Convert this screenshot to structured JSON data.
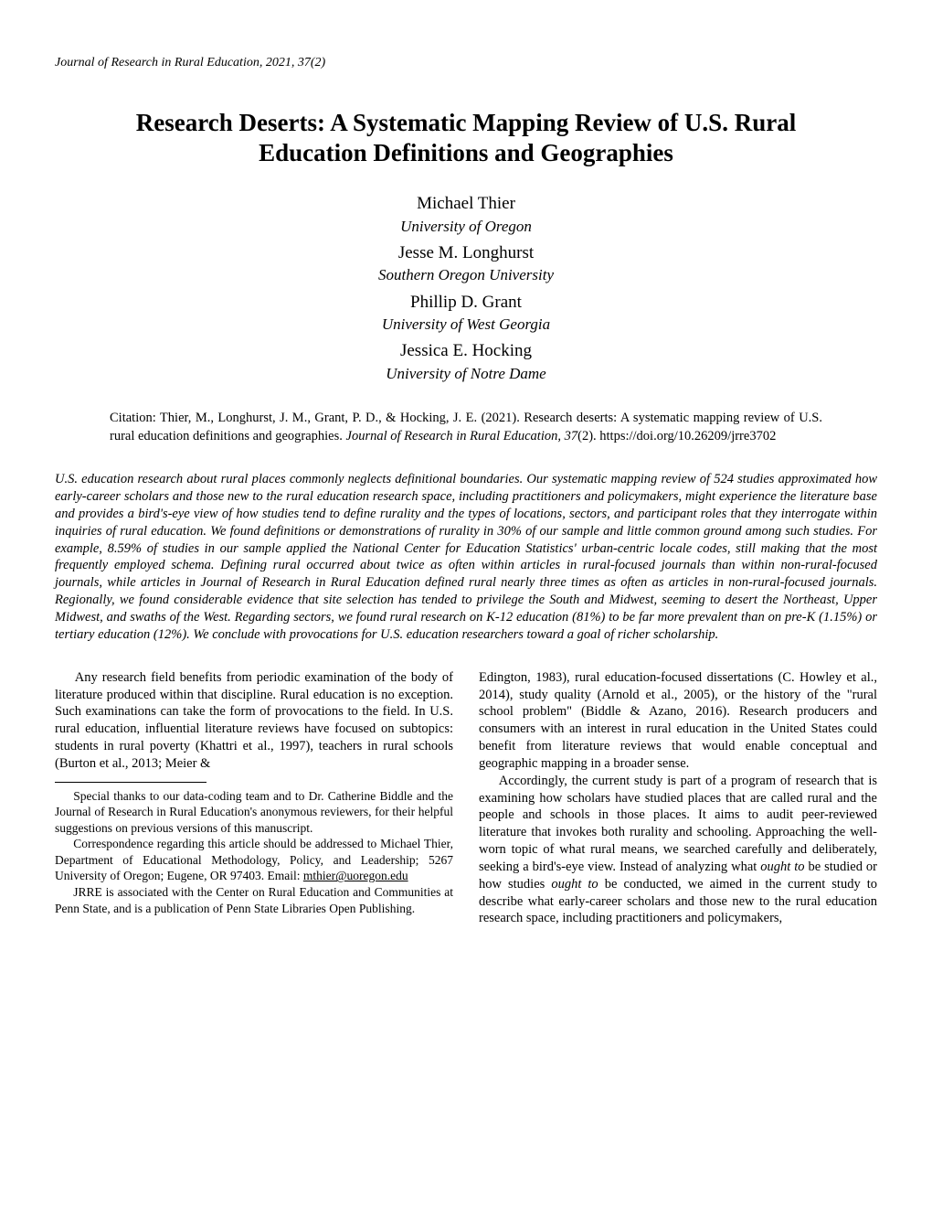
{
  "running_header": "Journal of Research in Rural Education, 2021, 37(2)",
  "title": "Research Deserts: A Systematic Mapping Review of U.S. Rural Education Definitions and Geographies",
  "authors": [
    {
      "name": "Michael Thier",
      "affiliation": "University of Oregon"
    },
    {
      "name": "Jesse M. Longhurst",
      "affiliation": "Southern Oregon University"
    },
    {
      "name": "Phillip D. Grant",
      "affiliation": "University of West Georgia"
    },
    {
      "name": "Jessica E. Hocking",
      "affiliation": "University of Notre Dame"
    }
  ],
  "citation": {
    "prefix": "Citation: Thier, M., Longhurst, J. M., Grant, P. D., & Hocking, J. E. (2021). Research deserts: A systematic mapping review of U.S. rural education definitions and geographies. ",
    "journal": "Journal of Research in Rural Education, 37",
    "suffix": "(2). https://doi.org/10.26209/jrre3702"
  },
  "abstract": "U.S. education research about rural places commonly neglects definitional boundaries. Our systematic mapping review of 524 studies approximated how early-career scholars and those new to the rural education research space, including practitioners and policymakers, might experience the literature base and provides a bird's-eye view of how studies tend to define rurality and the types of locations, sectors, and participant roles that they interrogate within inquiries of rural education. We found definitions or demonstrations of rurality in 30% of our sample and little common ground among such studies. For example, 8.59% of studies in our sample applied the National Center for Education Statistics' urban-centric locale codes, still making that the most frequently employed schema. Defining rural occurred about twice as often within articles in rural-focused journals than within non-rural-focused journals, while articles in Journal of Research in Rural Education defined rural nearly three times as often as articles in non-rural-focused journals. Regionally, we found considerable evidence that site selection has tended to privilege the South and Midwest, seeming to desert the Northeast, Upper Midwest, and swaths of the West. Regarding sectors, we found rural research on K-12 education (81%) to be far more prevalent than on pre-K (1.15%) or tertiary education (12%). We conclude with provocations for U.S. education researchers toward a goal of richer scholarship.",
  "body": {
    "left_p1": "Any research field benefits from periodic examination of the body of literature produced within that discipline. Rural education is no exception. Such examinations can take the form of provocations to the field. In U.S. rural education, influential literature reviews have focused on subtopics: students in rural poverty (Khattri et al., 1997), teachers in rural schools (Burton et al., 2013; Meier &",
    "right_p1": "Edington, 1983), rural education-focused dissertations (C. Howley et al., 2014), study quality (Arnold et al., 2005), or the history of the \"rural school problem\" (Biddle & Azano, 2016). Research producers and consumers with an interest in rural education in the United States could benefit from literature reviews that would enable conceptual and geographic mapping in a broader sense.",
    "right_p2_a": "Accordingly, the current study is part of a program of research that is examining how scholars have studied places that are called rural and the people and schools in those places. It aims to audit peer-reviewed literature that invokes both rurality and schooling. Approaching the well-worn topic of what rural means, we searched carefully and deliberately, seeking a bird's-eye view. Instead of analyzing what ",
    "right_ought1": "ought to",
    "right_p2_b": " be studied or how studies ",
    "right_ought2": "ought to",
    "right_p2_c": " be conducted, we aimed in the current study to describe what early-career scholars and those new to the rural education research space, including practitioners and policymakers,"
  },
  "footnotes": {
    "f1": "Special thanks to our data-coding team and to Dr. Catherine Biddle and the Journal of Research in Rural Education's anonymous reviewers, for their helpful suggestions on previous versions of this manuscript.",
    "f2_a": "Correspondence regarding this article should be addressed to Michael Thier, Department of Educational Methodology, Policy, and Leadership; 5267 University of Oregon; Eugene, OR 97403. Email: ",
    "f2_email": "mthier@uoregon.edu",
    "f3": "JRRE is associated with the Center on Rural Education and Communities at Penn State, and is a publication of Penn State Libraries Open Publishing."
  }
}
